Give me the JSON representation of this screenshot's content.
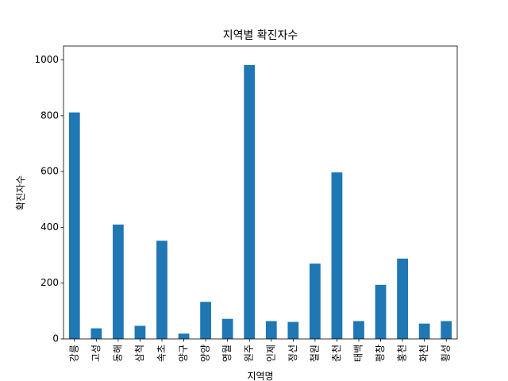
{
  "chart_data": {
    "type": "bar",
    "title": "지역별 확진자수",
    "xlabel": "지역명",
    "ylabel": "확진자수",
    "categories": [
      "강릉",
      "고성",
      "동해",
      "삼척",
      "속초",
      "양구",
      "양양",
      "영월",
      "원주",
      "인제",
      "정선",
      "철원",
      "춘천",
      "태백",
      "평창",
      "홍천",
      "화천",
      "횡성"
    ],
    "values": [
      812,
      38,
      410,
      47,
      352,
      19,
      133,
      72,
      982,
      64,
      61,
      270,
      597,
      64,
      194,
      288,
      55,
      64
    ],
    "ylim": [
      0,
      1050
    ],
    "yticks": [
      0,
      200,
      400,
      600,
      800,
      1000
    ],
    "bar_color": "#1f77b4",
    "grid": false,
    "legend": "none"
  }
}
